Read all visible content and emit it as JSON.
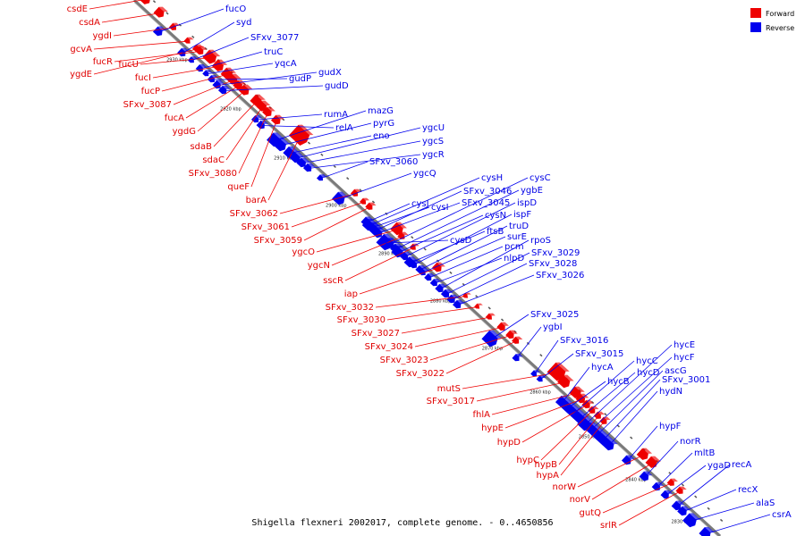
{
  "legend": {
    "forward_label": "Forward",
    "reverse_label": "Reverse",
    "forward_color": "#ee0000",
    "reverse_color": "#0000ee"
  },
  "caption": "Shigella flexneri 2002017, complete genome. - 0..4650856",
  "ticks": [
    "2930 kbp",
    "2920 kbp",
    "2910 kbp",
    "2900 kbp",
    "2890 kbp",
    "2880 kbp",
    "2870 kbp",
    "2860 kbp",
    "2850 kbp",
    "2840 kbp",
    "2830 kbp"
  ],
  "forward_genes": [
    "csdE",
    "csdA",
    "ygdI",
    "gcvA",
    "ygdE",
    "fucR",
    "fucU",
    "fucI",
    "fucP",
    "SFxv_3087",
    "fucA",
    "ygdG",
    "sdaB",
    "sdaC",
    "SFxv_3080",
    "queF",
    "barA",
    "SFxv_3062",
    "SFxv_3061",
    "SFxv_3059",
    "ygcO",
    "ygcN",
    "sscR",
    "iap",
    "SFxv_3032",
    "SFxv_3030",
    "SFxv_3027",
    "SFxv_3024",
    "SFxv_3023",
    "SFxv_3022",
    "mutS",
    "SFxv_3017",
    "fhlA",
    "hypE",
    "hypD",
    "hypC",
    "hypB",
    "hypA",
    "norW",
    "norV",
    "gutQ",
    "srlR"
  ],
  "reverse_genes": [
    "fucO",
    "syd",
    "SFxv_3077",
    "truC",
    "yqcA",
    "gudP",
    "gudX",
    "gudD",
    "rumA",
    "relA",
    "mazG",
    "pyrG",
    "eno",
    "ygcU",
    "ygcS",
    "ygcR",
    "SFxv_3060",
    "ygcQ",
    "cysH",
    "SFxv_3046",
    "SFxv_3045",
    "cysI",
    "cysJ",
    "cysD",
    "cysN",
    "ftsB",
    "cysC",
    "ygbE",
    "ispD",
    "ispF",
    "truD",
    "surE",
    "pcm",
    "nlpD",
    "rpoS",
    "SFxv_3029",
    "SFxv_3028",
    "SFxv_3026",
    "SFxv_3025",
    "ygbI",
    "SFxv_3016",
    "SFxv_3015",
    "hycA",
    "hycB",
    "hycC",
    "hycD",
    "hycE",
    "hycF",
    "ascG",
    "SFxv_3001",
    "hydN",
    "hypF",
    "norR",
    "mltB",
    "ygaD",
    "recA",
    "recX",
    "alaS",
    "csrA"
  ]
}
